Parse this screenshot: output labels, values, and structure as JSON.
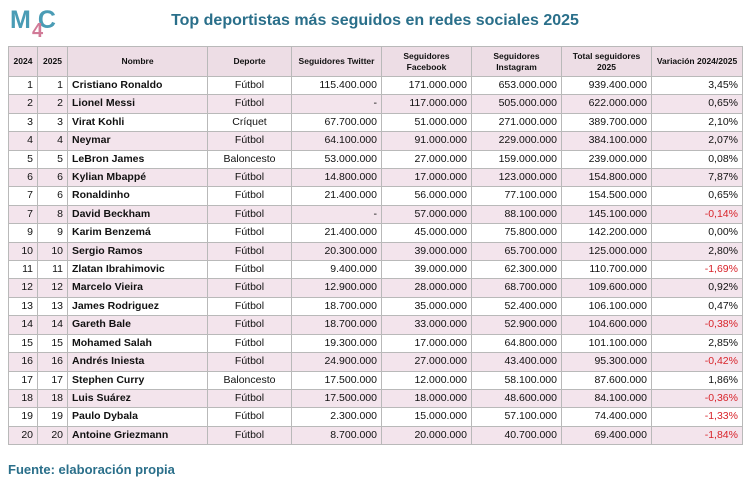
{
  "logo": {
    "text": "M4C",
    "part1": "M",
    "part2": "C",
    "accent": "4"
  },
  "title": "Top deportistas más seguidos en redes sociales 2025",
  "source": "Fuente: elaboración propia",
  "colors": {
    "title": "#2a6f8a",
    "header_bg": "#eddde5",
    "stripe": "#f3e4ec",
    "negative": "#d8232a"
  },
  "table": {
    "headers": [
      "2024",
      "2025",
      "Nombre",
      "Deporte",
      "Seguidores Twitter",
      "Seguidores Facebook",
      "Seguidores Instagram",
      "Total seguidores 2025",
      "Variación 2024/2025"
    ],
    "rows": [
      [
        "1",
        "1",
        "Cristiano Ronaldo",
        "Fútbol",
        "115.400.000",
        "171.000.000",
        "653.000.000",
        "939.400.000",
        "3,45%"
      ],
      [
        "2",
        "2",
        "Lionel Messi",
        "Fútbol",
        "-",
        "117.000.000",
        "505.000.000",
        "622.000.000",
        "0,65%"
      ],
      [
        "3",
        "3",
        "Virat Kohli",
        "Críquet",
        "67.700.000",
        "51.000.000",
        "271.000.000",
        "389.700.000",
        "2,10%"
      ],
      [
        "4",
        "4",
        "Neymar",
        "Fútbol",
        "64.100.000",
        "91.000.000",
        "229.000.000",
        "384.100.000",
        "2,07%"
      ],
      [
        "5",
        "5",
        "LeBron James",
        "Baloncesto",
        "53.000.000",
        "27.000.000",
        "159.000.000",
        "239.000.000",
        "0,08%"
      ],
      [
        "6",
        "6",
        "Kylian Mbappé",
        "Fútbol",
        "14.800.000",
        "17.000.000",
        "123.000.000",
        "154.800.000",
        "7,87%"
      ],
      [
        "7",
        "6",
        "Ronaldinho",
        "Fútbol",
        "21.400.000",
        "56.000.000",
        "77.100.000",
        "154.500.000",
        "0,65%"
      ],
      [
        "7",
        "8",
        "David Beckham",
        "Fútbol",
        "-",
        "57.000.000",
        "88.100.000",
        "145.100.000",
        "-0,14%"
      ],
      [
        "9",
        "9",
        "Karim Benzemá",
        "Fútbol",
        "21.400.000",
        "45.000.000",
        "75.800.000",
        "142.200.000",
        "0,00%"
      ],
      [
        "10",
        "10",
        "Sergio Ramos",
        "Fútbol",
        "20.300.000",
        "39.000.000",
        "65.700.000",
        "125.000.000",
        "2,80%"
      ],
      [
        "11",
        "11",
        "Zlatan Ibrahimovic",
        "Fútbol",
        "9.400.000",
        "39.000.000",
        "62.300.000",
        "110.700.000",
        "-1,69%"
      ],
      [
        "12",
        "12",
        "Marcelo Vieira",
        "Fútbol",
        "12.900.000",
        "28.000.000",
        "68.700.000",
        "109.600.000",
        "0,92%"
      ],
      [
        "13",
        "13",
        "James Rodriguez",
        "Fútbol",
        "18.700.000",
        "35.000.000",
        "52.400.000",
        "106.100.000",
        "0,47%"
      ],
      [
        "14",
        "14",
        "Gareth Bale",
        "Fútbol",
        "18.700.000",
        "33.000.000",
        "52.900.000",
        "104.600.000",
        "-0,38%"
      ],
      [
        "15",
        "15",
        "Mohamed Salah",
        "Fútbol",
        "19.300.000",
        "17.000.000",
        "64.800.000",
        "101.100.000",
        "2,85%"
      ],
      [
        "16",
        "16",
        "Andrés Iniesta",
        "Fútbol",
        "24.900.000",
        "27.000.000",
        "43.400.000",
        "95.300.000",
        "-0,42%"
      ],
      [
        "17",
        "17",
        "Stephen Curry",
        "Baloncesto",
        "17.500.000",
        "12.000.000",
        "58.100.000",
        "87.600.000",
        "1,86%"
      ],
      [
        "18",
        "18",
        "Luis Suárez",
        "Fútbol",
        "17.500.000",
        "18.000.000",
        "48.600.000",
        "84.100.000",
        "-0,36%"
      ],
      [
        "19",
        "19",
        "Paulo Dybala",
        "Fútbol",
        "2.300.000",
        "15.000.000",
        "57.100.000",
        "74.400.000",
        "-1,33%"
      ],
      [
        "20",
        "20",
        "Antoine Griezmann",
        "Fútbol",
        "8.700.000",
        "20.000.000",
        "40.700.000",
        "69.400.000",
        "-1,84%"
      ]
    ]
  }
}
